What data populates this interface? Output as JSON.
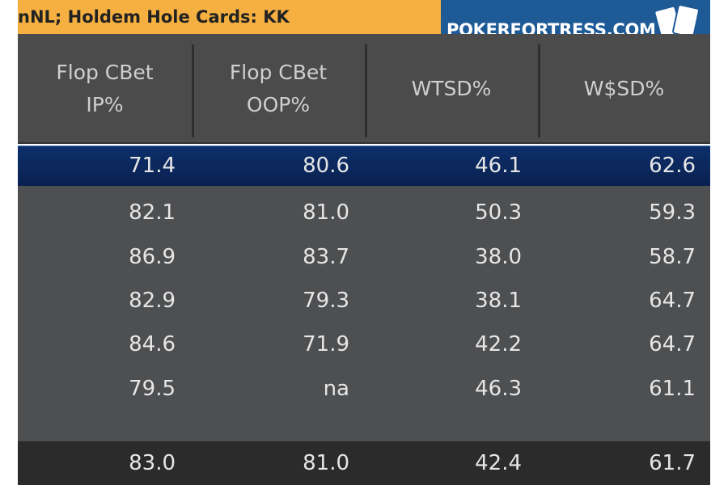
{
  "header": {
    "title": "nNL; Holdem Hole Cards: KK",
    "logo": "POKERFORTRESS.COM"
  },
  "table": {
    "columns": [
      "Flop CBet IP%",
      "Flop CBet OOP%",
      "WTSD%",
      "W$SD%"
    ],
    "rows": [
      [
        "71.4",
        "80.6",
        "46.1",
        "62.6"
      ],
      [
        "82.1",
        "81.0",
        "50.3",
        "59.3"
      ],
      [
        "86.9",
        "83.7",
        "38.0",
        "58.7"
      ],
      [
        "82.9",
        "79.3",
        "38.1",
        "64.7"
      ],
      [
        "84.6",
        "71.9",
        "42.2",
        "64.7"
      ],
      [
        "79.5",
        "na",
        "46.3",
        "61.1"
      ]
    ],
    "total": [
      "83.0",
      "81.0",
      "42.4",
      "61.7"
    ]
  }
}
